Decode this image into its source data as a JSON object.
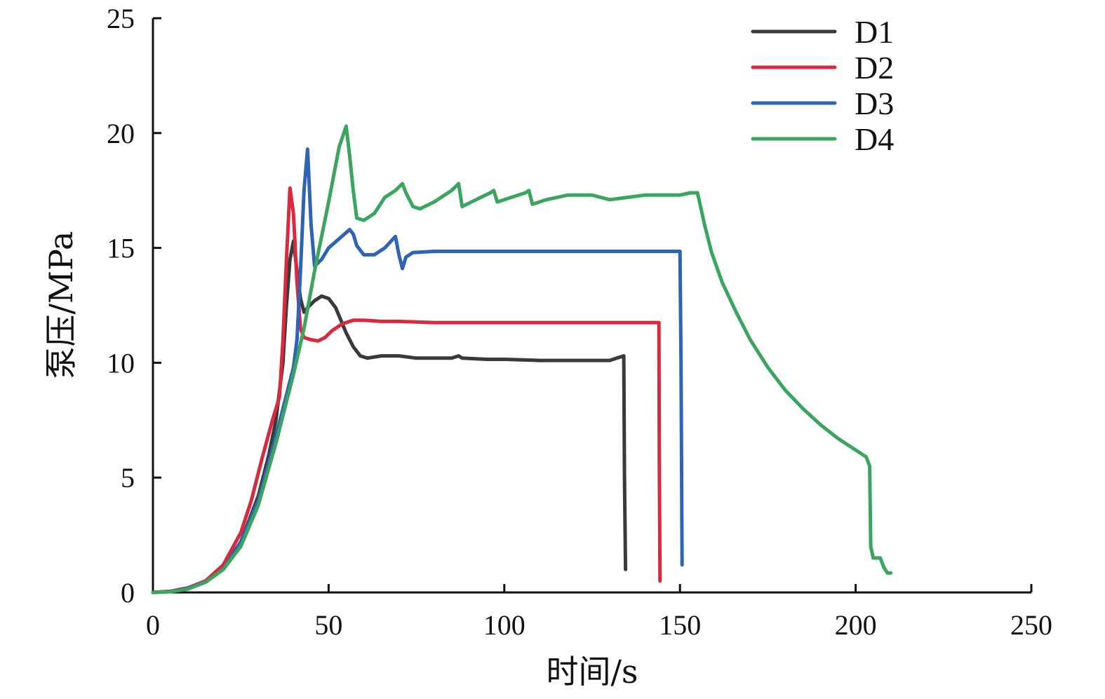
{
  "chart_data": {
    "type": "line",
    "xlabel": "时间/s",
    "ylabel": "泵压/MPa",
    "xlim": [
      0,
      250
    ],
    "ylim": [
      0,
      25
    ],
    "xticks": [
      0,
      50,
      100,
      150,
      200,
      250
    ],
    "yticks": [
      0,
      5,
      10,
      15,
      20,
      25
    ],
    "grid": false,
    "legend": "top-right",
    "series": [
      {
        "name": "D1",
        "color": "#3a3a3a",
        "points": [
          [
            0,
            0
          ],
          [
            5,
            0.05
          ],
          [
            10,
            0.2
          ],
          [
            15,
            0.5
          ],
          [
            20,
            1.1
          ],
          [
            25,
            2.2
          ],
          [
            30,
            4.2
          ],
          [
            33,
            6.0
          ],
          [
            35,
            7.5
          ],
          [
            37,
            10.0
          ],
          [
            38,
            12.5
          ],
          [
            39,
            14.5
          ],
          [
            40,
            15.3
          ],
          [
            41,
            14.0
          ],
          [
            42,
            12.8
          ],
          [
            43,
            12.2
          ],
          [
            44,
            12.4
          ],
          [
            46,
            12.7
          ],
          [
            48,
            12.9
          ],
          [
            50,
            12.8
          ],
          [
            52,
            12.4
          ],
          [
            55,
            11.3
          ],
          [
            57,
            10.7
          ],
          [
            59,
            10.3
          ],
          [
            61,
            10.2
          ],
          [
            65,
            10.3
          ],
          [
            70,
            10.3
          ],
          [
            75,
            10.2
          ],
          [
            80,
            10.2
          ],
          [
            85,
            10.2
          ],
          [
            87,
            10.3
          ],
          [
            88,
            10.2
          ],
          [
            95,
            10.15
          ],
          [
            100,
            10.15
          ],
          [
            110,
            10.1
          ],
          [
            120,
            10.1
          ],
          [
            130,
            10.1
          ],
          [
            132,
            10.2
          ],
          [
            134,
            10.3
          ],
          [
            134.2,
            5.0
          ],
          [
            134.5,
            1.0
          ]
        ]
      },
      {
        "name": "D2",
        "color": "#d9293e",
        "points": [
          [
            0,
            0
          ],
          [
            5,
            0.05
          ],
          [
            10,
            0.2
          ],
          [
            15,
            0.5
          ],
          [
            20,
            1.2
          ],
          [
            25,
            2.6
          ],
          [
            28,
            4.0
          ],
          [
            31,
            5.8
          ],
          [
            34,
            7.5
          ],
          [
            36,
            8.5
          ],
          [
            37,
            11.0
          ],
          [
            38,
            14.5
          ],
          [
            39,
            17.6
          ],
          [
            40,
            16.5
          ],
          [
            41,
            13.5
          ],
          [
            42,
            11.5
          ],
          [
            43,
            11.1
          ],
          [
            45,
            11.0
          ],
          [
            47,
            10.95
          ],
          [
            49,
            11.1
          ],
          [
            51,
            11.4
          ],
          [
            54,
            11.7
          ],
          [
            57,
            11.85
          ],
          [
            60,
            11.85
          ],
          [
            65,
            11.8
          ],
          [
            70,
            11.8
          ],
          [
            80,
            11.75
          ],
          [
            90,
            11.75
          ],
          [
            100,
            11.75
          ],
          [
            110,
            11.75
          ],
          [
            120,
            11.75
          ],
          [
            130,
            11.75
          ],
          [
            140,
            11.75
          ],
          [
            144,
            11.75
          ],
          [
            144.1,
            6.0
          ],
          [
            144.3,
            0.5
          ]
        ]
      },
      {
        "name": "D3",
        "color": "#2f63b3",
        "points": [
          [
            0,
            0
          ],
          [
            5,
            0.04
          ],
          [
            10,
            0.18
          ],
          [
            15,
            0.45
          ],
          [
            20,
            1.0
          ],
          [
            25,
            2.2
          ],
          [
            30,
            4.0
          ],
          [
            35,
            6.8
          ],
          [
            38,
            8.6
          ],
          [
            40,
            9.8
          ],
          [
            41,
            11.0
          ],
          [
            42,
            14.0
          ],
          [
            43,
            17.5
          ],
          [
            44,
            19.3
          ],
          [
            45,
            16.0
          ],
          [
            46,
            14.2
          ],
          [
            48,
            14.5
          ],
          [
            50,
            15.0
          ],
          [
            53,
            15.4
          ],
          [
            56,
            15.8
          ],
          [
            57,
            15.6
          ],
          [
            58,
            15.1
          ],
          [
            60,
            14.7
          ],
          [
            63,
            14.7
          ],
          [
            66,
            15.0
          ],
          [
            69,
            15.5
          ],
          [
            70,
            14.7
          ],
          [
            71,
            14.1
          ],
          [
            72,
            14.6
          ],
          [
            74,
            14.8
          ],
          [
            80,
            14.85
          ],
          [
            90,
            14.85
          ],
          [
            100,
            14.85
          ],
          [
            110,
            14.85
          ],
          [
            120,
            14.85
          ],
          [
            130,
            14.85
          ],
          [
            140,
            14.85
          ],
          [
            150,
            14.85
          ],
          [
            150.3,
            10.0
          ],
          [
            150.6,
            1.2
          ]
        ]
      },
      {
        "name": "D4",
        "color": "#3aa55f",
        "points": [
          [
            0,
            0
          ],
          [
            5,
            0.03
          ],
          [
            10,
            0.15
          ],
          [
            15,
            0.45
          ],
          [
            20,
            1.0
          ],
          [
            25,
            2.0
          ],
          [
            30,
            3.8
          ],
          [
            35,
            6.5
          ],
          [
            40,
            9.5
          ],
          [
            43,
            11.5
          ],
          [
            46,
            14.0
          ],
          [
            50,
            17.0
          ],
          [
            53,
            19.4
          ],
          [
            55,
            20.3
          ],
          [
            56,
            19.0
          ],
          [
            57,
            17.5
          ],
          [
            58,
            16.3
          ],
          [
            60,
            16.2
          ],
          [
            63,
            16.5
          ],
          [
            66,
            17.2
          ],
          [
            69,
            17.5
          ],
          [
            71,
            17.8
          ],
          [
            72,
            17.4
          ],
          [
            74,
            16.8
          ],
          [
            76,
            16.7
          ],
          [
            80,
            17.0
          ],
          [
            85,
            17.5
          ],
          [
            87,
            17.8
          ],
          [
            88,
            16.8
          ],
          [
            92,
            17.1
          ],
          [
            96,
            17.4
          ],
          [
            97,
            17.5
          ],
          [
            98,
            17.0
          ],
          [
            102,
            17.2
          ],
          [
            106,
            17.4
          ],
          [
            107,
            17.5
          ],
          [
            108,
            16.9
          ],
          [
            112,
            17.1
          ],
          [
            118,
            17.3
          ],
          [
            125,
            17.3
          ],
          [
            130,
            17.1
          ],
          [
            140,
            17.3
          ],
          [
            150,
            17.3
          ],
          [
            153,
            17.4
          ],
          [
            155,
            17.4
          ],
          [
            157,
            16.0
          ],
          [
            159,
            14.8
          ],
          [
            162,
            13.5
          ],
          [
            166,
            12.2
          ],
          [
            170,
            11.0
          ],
          [
            175,
            9.8
          ],
          [
            180,
            8.8
          ],
          [
            185,
            8.0
          ],
          [
            190,
            7.3
          ],
          [
            195,
            6.7
          ],
          [
            200,
            6.2
          ],
          [
            203,
            5.9
          ],
          [
            204,
            5.5
          ],
          [
            204.3,
            2.0
          ],
          [
            205,
            1.5
          ],
          [
            207,
            1.5
          ],
          [
            208,
            1.1
          ],
          [
            209,
            0.85
          ],
          [
            210,
            0.85
          ]
        ]
      }
    ]
  }
}
